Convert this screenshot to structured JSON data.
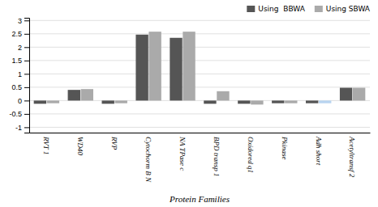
{
  "chart_data": {
    "type": "bar",
    "xlabel": "Protein Families",
    "categories": [
      "RVT 1",
      "WD40",
      "RVP",
      "Cytochorm B N",
      "NA TPase c",
      "BPD transp 1",
      "Oxidored q1",
      "Pkinase",
      "Adh short",
      "Acetyltransf 2"
    ],
    "series": [
      {
        "name": "Using  BBWA",
        "color": "#555555",
        "values": [
          -0.12,
          0.4,
          -0.12,
          2.47,
          2.35,
          -0.12,
          -0.12,
          -0.1,
          -0.1,
          0.48
        ]
      },
      {
        "name": "Using SBWA",
        "color": "#aaaaaa",
        "colors": [
          "#aaaaaa",
          "#aaaaaa",
          "#aaaaaa",
          "#aaaaaa",
          "#aaaaaa",
          "#aaaaaa",
          "#aaaaaa",
          "#aaaaaa",
          "#b8d4f0",
          "#aaaaaa"
        ],
        "values": [
          -0.1,
          0.43,
          -0.1,
          2.58,
          2.58,
          0.35,
          -0.15,
          -0.1,
          -0.1,
          0.48
        ]
      }
    ],
    "ylim": [
      -1.2,
      3.1
    ],
    "yticks": [
      -1,
      -0.5,
      0,
      0.5,
      1,
      1.5,
      2,
      2.5,
      3
    ],
    "grid": true,
    "legend": "upper right"
  }
}
